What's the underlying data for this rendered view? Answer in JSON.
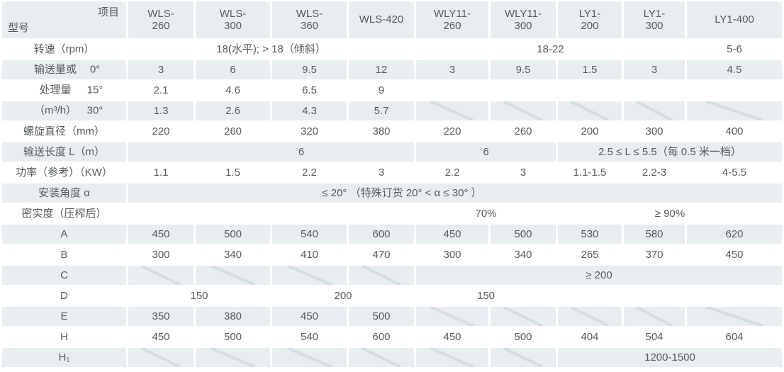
{
  "table": {
    "corner_top": "项目",
    "corner_bottom": "型号",
    "columns": [
      "WLS-\n260",
      "WLS-\n300",
      "WLS-\n360",
      "WLS-420",
      "WLY11-\n260",
      "WLY11-\n300",
      "LY1-\n200",
      "LY1-\n300",
      "LY1-400"
    ],
    "rows": [
      {
        "name": "speed-rpm",
        "shade": "white",
        "label": "转速（rpm）",
        "cells": [
          {
            "t": "18(水平); > 18（倾斜）",
            "s": 4
          },
          {
            "t": "18-22",
            "s": 4
          },
          {
            "t": "5-6",
            "s": 1
          }
        ]
      },
      {
        "name": "capacity-0deg",
        "shade": "gray",
        "group_line": "输送量或",
        "angle": "0°",
        "cells": [
          {
            "t": "3"
          },
          {
            "t": "6"
          },
          {
            "t": "9.5"
          },
          {
            "t": "12"
          },
          {
            "t": "3"
          },
          {
            "t": "9.5"
          },
          {
            "t": "1.5"
          },
          {
            "t": "3"
          },
          {
            "t": "4.5"
          }
        ]
      },
      {
        "name": "capacity-15deg",
        "shade": "white",
        "group_line": "处理量",
        "angle": "15°",
        "cells": [
          {
            "t": "2.1"
          },
          {
            "t": "4.6"
          },
          {
            "t": "6.5"
          },
          {
            "t": "9"
          },
          {
            "t": ""
          },
          {
            "t": ""
          },
          {
            "t": ""
          },
          {
            "t": ""
          },
          {
            "t": ""
          }
        ]
      },
      {
        "name": "capacity-30deg",
        "shade": "gray",
        "group_line": "（m³/h）",
        "angle": "30°",
        "cells": [
          {
            "t": "1.3"
          },
          {
            "t": "2.6"
          },
          {
            "t": "4.3"
          },
          {
            "t": "5.7"
          },
          {
            "t": ""
          },
          {
            "t": ""
          },
          {
            "t": ""
          },
          {
            "t": ""
          },
          {
            "t": ""
          }
        ]
      },
      {
        "name": "screw-diameter",
        "shade": "white",
        "label": "螺旋直径（mm）",
        "cells": [
          {
            "t": "220"
          },
          {
            "t": "260"
          },
          {
            "t": "320"
          },
          {
            "t": "380"
          },
          {
            "t": "220"
          },
          {
            "t": "260"
          },
          {
            "t": "200"
          },
          {
            "t": "300"
          },
          {
            "t": "400"
          }
        ]
      },
      {
        "name": "conveying-length",
        "shade": "gray",
        "label": "输送长度 L（m）",
        "cells": [
          {
            "t": "6",
            "s": 4,
            "shift": "right"
          },
          {
            "t": "6",
            "s": 2
          },
          {
            "t": "2.5 ≤ L ≤ 5.5（每 0.5 米一档）",
            "s": 3
          }
        ]
      },
      {
        "name": "power-kw",
        "shade": "white",
        "label": "功率（参考）（KW）",
        "cells": [
          {
            "t": "1.1"
          },
          {
            "t": "1.5"
          },
          {
            "t": "2.2"
          },
          {
            "t": "3"
          },
          {
            "t": "2.2"
          },
          {
            "t": "3"
          },
          {
            "t": "1.1-1.5"
          },
          {
            "t": "2.2-3"
          },
          {
            "t": "4-5.5"
          }
        ]
      },
      {
        "name": "install-angle",
        "shade": "gray",
        "label": "安装角度 α",
        "cells": [
          {
            "t": "≤ 20° （特殊订货 20° < α ≤ 30° ）",
            "s": 9,
            "shift": "left"
          }
        ]
      },
      {
        "name": "density",
        "shade": "white",
        "label": "密实度（压榨后）",
        "cells": [
          {
            "t": ""
          },
          {
            "t": ""
          },
          {
            "t": ""
          },
          {
            "t": ""
          },
          {
            "t": "70%",
            "s": 2
          },
          {
            "t": "≥ 90%",
            "s": 3
          }
        ]
      },
      {
        "name": "dim-a",
        "shade": "gray",
        "label": "A",
        "cells": [
          {
            "t": "450"
          },
          {
            "t": "500"
          },
          {
            "t": "540"
          },
          {
            "t": "600"
          },
          {
            "t": "450"
          },
          {
            "t": "500"
          },
          {
            "t": "530"
          },
          {
            "t": "580"
          },
          {
            "t": "620"
          }
        ]
      },
      {
        "name": "dim-b",
        "shade": "white",
        "label": "B",
        "cells": [
          {
            "t": "300"
          },
          {
            "t": "340"
          },
          {
            "t": "410"
          },
          {
            "t": "470"
          },
          {
            "t": "300"
          },
          {
            "t": "340"
          },
          {
            "t": "265"
          },
          {
            "t": "370"
          },
          {
            "t": "450"
          }
        ]
      },
      {
        "name": "dim-c",
        "shade": "gray",
        "label": "C",
        "cells": [
          {
            "t": ""
          },
          {
            "t": ""
          },
          {
            "t": ""
          },
          {
            "t": ""
          },
          {
            "t": "≥ 200",
            "s": 5
          }
        ]
      },
      {
        "name": "dim-d",
        "shade": "white",
        "label": "D",
        "cells": [
          {
            "t": "150",
            "s": 2
          },
          {
            "t": "200",
            "s": 2
          },
          {
            "t": "150",
            "s": 2
          },
          {
            "t": ""
          },
          {
            "t": ""
          },
          {
            "t": ""
          }
        ]
      },
      {
        "name": "dim-e",
        "shade": "gray",
        "label": "E",
        "cells": [
          {
            "t": "350"
          },
          {
            "t": "380"
          },
          {
            "t": "450"
          },
          {
            "t": "500"
          },
          {
            "t": ""
          },
          {
            "t": ""
          },
          {
            "t": ""
          },
          {
            "t": ""
          },
          {
            "t": ""
          }
        ]
      },
      {
        "name": "dim-h",
        "shade": "white",
        "label": "H",
        "cells": [
          {
            "t": "450"
          },
          {
            "t": "500"
          },
          {
            "t": "540"
          },
          {
            "t": "600"
          },
          {
            "t": "450"
          },
          {
            "t": "500"
          },
          {
            "t": "404"
          },
          {
            "t": "504"
          },
          {
            "t": "604"
          }
        ]
      },
      {
        "name": "dim-h1",
        "shade": "gray",
        "label": "H₁",
        "cells": [
          {
            "t": ""
          },
          {
            "t": ""
          },
          {
            "t": ""
          },
          {
            "t": ""
          },
          {
            "t": ""
          },
          {
            "t": ""
          },
          {
            "t": "1200-1500",
            "s": 3
          }
        ]
      }
    ]
  }
}
